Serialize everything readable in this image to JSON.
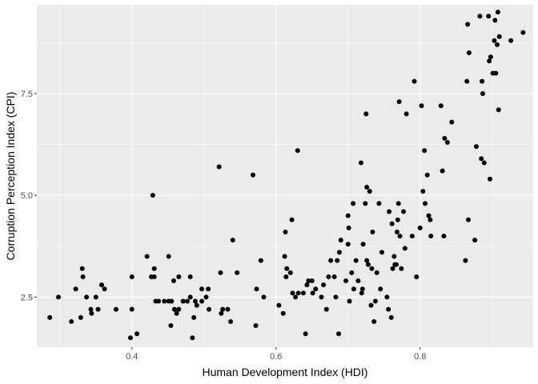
{
  "chart_data": {
    "type": "scatter",
    "xlabel": "Human Development Index (HDI)",
    "ylabel": "Corruption Perception Index (CPI)",
    "xlim": [
      0.268,
      0.957
    ],
    "ylim": [
      1.27,
      9.68
    ],
    "x_ticks": [
      0.4,
      0.6,
      0.8
    ],
    "x_tick_labels": [
      "0.4",
      "0.6",
      "0.8"
    ],
    "y_ticks": [
      2.5,
      5.0,
      7.5
    ],
    "y_tick_labels": [
      "2.5",
      "5.0",
      "7.5"
    ],
    "x_minor": [
      0.3,
      0.5,
      0.7,
      0.9
    ],
    "y_minor": [
      1.25,
      3.75,
      6.25,
      8.75
    ],
    "grid": true,
    "legend": "none",
    "colors": {
      "panel": "#ebebeb",
      "grid": "#ffffff",
      "point": "#000000"
    },
    "points": [
      [
        0.286,
        2.0
      ],
      [
        0.298,
        2.5
      ],
      [
        0.316,
        1.9
      ],
      [
        0.322,
        2.7
      ],
      [
        0.329,
        2.0
      ],
      [
        0.331,
        3.2
      ],
      [
        0.332,
        3.0
      ],
      [
        0.337,
        2.5
      ],
      [
        0.343,
        2.2
      ],
      [
        0.344,
        2.1
      ],
      [
        0.35,
        2.5
      ],
      [
        0.353,
        2.2
      ],
      [
        0.358,
        2.8
      ],
      [
        0.362,
        2.7
      ],
      [
        0.378,
        2.2
      ],
      [
        0.398,
        1.5
      ],
      [
        0.4,
        2.2
      ],
      [
        0.4,
        3.0
      ],
      [
        0.407,
        1.6
      ],
      [
        0.421,
        3.5
      ],
      [
        0.427,
        3.0
      ],
      [
        0.429,
        5.0
      ],
      [
        0.431,
        3.2
      ],
      [
        0.431,
        3.0
      ],
      [
        0.433,
        2.4
      ],
      [
        0.437,
        2.4
      ],
      [
        0.445,
        2.4
      ],
      [
        0.451,
        3.5
      ],
      [
        0.451,
        2.4
      ],
      [
        0.454,
        1.8
      ],
      [
        0.455,
        2.4
      ],
      [
        0.458,
        2.9
      ],
      [
        0.459,
        2.2
      ],
      [
        0.462,
        2.1
      ],
      [
        0.465,
        2.2
      ],
      [
        0.465,
        3.0
      ],
      [
        0.471,
        2.4
      ],
      [
        0.477,
        2.4
      ],
      [
        0.481,
        3.0
      ],
      [
        0.481,
        2.5
      ],
      [
        0.484,
        1.5
      ],
      [
        0.486,
        2.0
      ],
      [
        0.488,
        2.4
      ],
      [
        0.49,
        2.3
      ],
      [
        0.497,
        2.7
      ],
      [
        0.497,
        2.4
      ],
      [
        0.503,
        2.5
      ],
      [
        0.506,
        2.7
      ],
      [
        0.507,
        2.2
      ],
      [
        0.521,
        5.7
      ],
      [
        0.523,
        3.1
      ],
      [
        0.524,
        2.1
      ],
      [
        0.526,
        2.2
      ],
      [
        0.533,
        2.2
      ],
      [
        0.537,
        1.9
      ],
      [
        0.54,
        3.9
      ],
      [
        0.546,
        3.1
      ],
      [
        0.568,
        5.5
      ],
      [
        0.572,
        1.8
      ],
      [
        0.573,
        2.7
      ],
      [
        0.579,
        3.4
      ],
      [
        0.583,
        2.5
      ],
      [
        0.604,
        2.3
      ],
      [
        0.61,
        2.1
      ],
      [
        0.612,
        3.5
      ],
      [
        0.613,
        4.1
      ],
      [
        0.614,
        3.0
      ],
      [
        0.615,
        3.2
      ],
      [
        0.62,
        3.1
      ],
      [
        0.622,
        4.4
      ],
      [
        0.623,
        2.6
      ],
      [
        0.627,
        2.5
      ],
      [
        0.63,
        6.1
      ],
      [
        0.631,
        2.6
      ],
      [
        0.638,
        2.6
      ],
      [
        0.641,
        1.6
      ],
      [
        0.643,
        2.8
      ],
      [
        0.645,
        2.9
      ],
      [
        0.65,
        2.9
      ],
      [
        0.651,
        2.6
      ],
      [
        0.655,
        2.7
      ],
      [
        0.663,
        2.5
      ],
      [
        0.666,
        2.8
      ],
      [
        0.67,
        2.2
      ],
      [
        0.673,
        3.0
      ],
      [
        0.676,
        3.4
      ],
      [
        0.681,
        3.0
      ],
      [
        0.683,
        2.5
      ],
      [
        0.685,
        3.4
      ],
      [
        0.687,
        1.6
      ],
      [
        0.688,
        3.6
      ],
      [
        0.69,
        3.9
      ],
      [
        0.697,
        2.9
      ],
      [
        0.7,
        3.8
      ],
      [
        0.7,
        4.5
      ],
      [
        0.701,
        4.2
      ],
      [
        0.702,
        2.4
      ],
      [
        0.705,
        3.1
      ],
      [
        0.707,
        4.8
      ],
      [
        0.708,
        2.7
      ],
      [
        0.711,
        3.4
      ],
      [
        0.714,
        2.9
      ],
      [
        0.718,
        5.8
      ],
      [
        0.719,
        2.6
      ],
      [
        0.72,
        2.7
      ],
      [
        0.721,
        3.8
      ],
      [
        0.724,
        4.8
      ],
      [
        0.725,
        7.0
      ],
      [
        0.726,
        5.2
      ],
      [
        0.726,
        3.4
      ],
      [
        0.728,
        3.3
      ],
      [
        0.73,
        5.1
      ],
      [
        0.732,
        2.3
      ],
      [
        0.733,
        3.2
      ],
      [
        0.734,
        4.1
      ],
      [
        0.736,
        1.9
      ],
      [
        0.738,
        2.4
      ],
      [
        0.74,
        3.1
      ],
      [
        0.743,
        4.8
      ],
      [
        0.745,
        2.7
      ],
      [
        0.747,
        3.6
      ],
      [
        0.754,
        2.5
      ],
      [
        0.756,
        2.2
      ],
      [
        0.757,
        4.6
      ],
      [
        0.76,
        2.0
      ],
      [
        0.761,
        4.3
      ],
      [
        0.762,
        3.2
      ],
      [
        0.764,
        3.5
      ],
      [
        0.765,
        3.3
      ],
      [
        0.767,
        3.3
      ],
      [
        0.768,
        4.1
      ],
      [
        0.769,
        4.4
      ],
      [
        0.77,
        4.8
      ],
      [
        0.771,
        7.3
      ],
      [
        0.772,
        4.0
      ],
      [
        0.774,
        3.2
      ],
      [
        0.777,
        4.6
      ],
      [
        0.779,
        3.7
      ],
      [
        0.781,
        7.0
      ],
      [
        0.789,
        4.0
      ],
      [
        0.792,
        7.8
      ],
      [
        0.795,
        3.0
      ],
      [
        0.8,
        4.2
      ],
      [
        0.802,
        7.2
      ],
      [
        0.804,
        5.1
      ],
      [
        0.806,
        6.1
      ],
      [
        0.807,
        4.8
      ],
      [
        0.81,
        5.5
      ],
      [
        0.812,
        4.5
      ],
      [
        0.814,
        4.4
      ],
      [
        0.815,
        4.0
      ],
      [
        0.829,
        7.2
      ],
      [
        0.831,
        5.6
      ],
      [
        0.833,
        4.0
      ],
      [
        0.834,
        6.4
      ],
      [
        0.838,
        6.3
      ],
      [
        0.844,
        6.8
      ],
      [
        0.863,
        3.4
      ],
      [
        0.865,
        7.8
      ],
      [
        0.866,
        9.2
      ],
      [
        0.867,
        4.4
      ],
      [
        0.868,
        8.5
      ],
      [
        0.876,
        3.9
      ],
      [
        0.878,
        6.2
      ],
      [
        0.883,
        9.4
      ],
      [
        0.885,
        5.9
      ],
      [
        0.886,
        7.8
      ],
      [
        0.887,
        7.5
      ],
      [
        0.889,
        5.8
      ],
      [
        0.895,
        9.4
      ],
      [
        0.896,
        8.3
      ],
      [
        0.897,
        5.4
      ],
      [
        0.898,
        8.4
      ],
      [
        0.901,
        8.0
      ],
      [
        0.903,
        8.8
      ],
      [
        0.904,
        9.3
      ],
      [
        0.905,
        8.0
      ],
      [
        0.907,
        8.7
      ],
      [
        0.908,
        9.5
      ],
      [
        0.909,
        7.1
      ],
      [
        0.91,
        8.9
      ],
      [
        0.926,
        8.8
      ],
      [
        0.943,
        9.0
      ]
    ]
  }
}
